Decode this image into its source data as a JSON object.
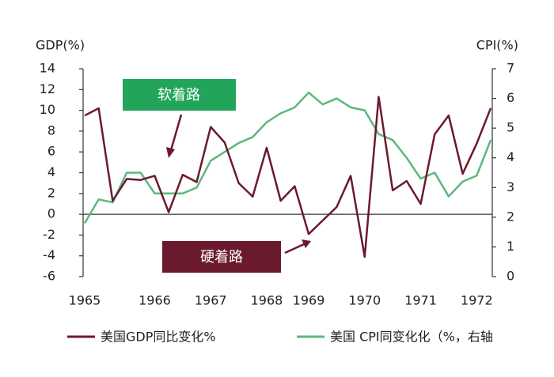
{
  "chart_data": {
    "type": "line",
    "categories": [
      "1965",
      null,
      null,
      null,
      null,
      "1966",
      null,
      null,
      null,
      "1967",
      null,
      null,
      null,
      "1968",
      null,
      null,
      "1969",
      null,
      null,
      null,
      "1970",
      null,
      null,
      null,
      "1971",
      null,
      null,
      null,
      "1972",
      null
    ],
    "y_label": "GDP(%)",
    "y2_label": "CPI(%)",
    "ylim": [
      -6,
      14
    ],
    "yticks": [
      -6,
      -4,
      -2,
      0,
      2,
      4,
      6,
      8,
      10,
      12,
      14
    ],
    "y2lim": [
      0,
      7
    ],
    "y2ticks": [
      0,
      1,
      2,
      3,
      4,
      5,
      6,
      7
    ],
    "series": [
      {
        "name": "美国GDP同比变化%",
        "color": "#6b1a2e",
        "values": [
          9.5,
          10.2,
          1.3,
          3.4,
          3.3,
          3.7,
          0.2,
          3.8,
          3.1,
          8.4,
          6.9,
          3.0,
          1.7,
          6.4,
          1.3,
          2.7,
          -1.9,
          -0.6,
          0.7,
          3.7,
          -4.1,
          11.3,
          2.3,
          3.2,
          1.0,
          7.7,
          9.5,
          3.9,
          6.8,
          10.2
        ]
      },
      {
        "name": "美国 CPI同变化化（%，右轴",
        "color": "#5cb87a",
        "axis": "y2",
        "values": [
          1.8,
          2.6,
          2.5,
          3.5,
          3.5,
          2.8,
          2.8,
          2.8,
          3.0,
          3.9,
          4.2,
          4.5,
          4.7,
          5.2,
          5.5,
          5.7,
          6.2,
          5.8,
          6.0,
          5.7,
          5.6,
          4.8,
          4.6,
          4.0,
          3.3,
          3.5,
          2.7,
          3.2,
          3.4,
          4.6
        ]
      }
    ],
    "annotations": [
      "软着路",
      "硬着路"
    ]
  }
}
